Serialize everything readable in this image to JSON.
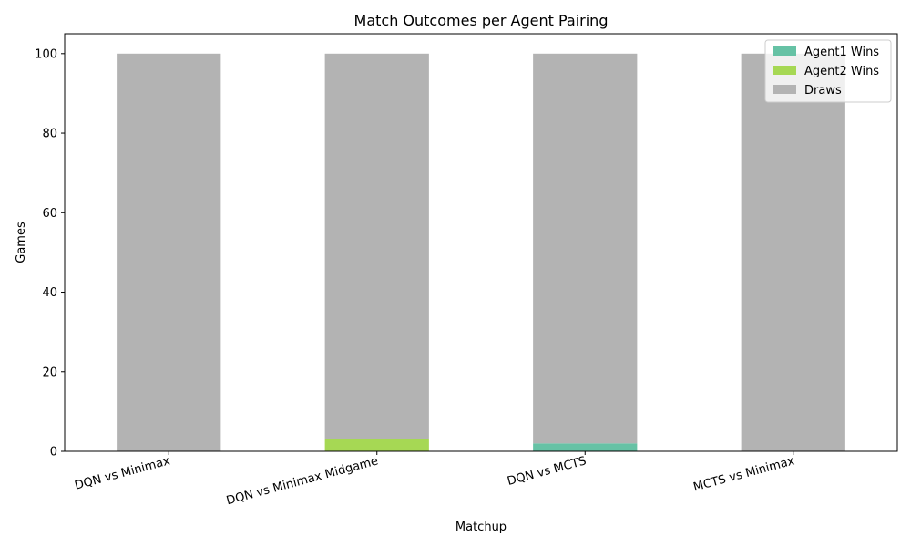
{
  "chart_data": {
    "type": "bar",
    "stacked": true,
    "title": "Match Outcomes per Agent Pairing",
    "xlabel": "Matchup",
    "ylabel": "Games",
    "categories": [
      "DQN vs Minimax",
      "DQN vs Minimax Midgame",
      "DQN vs MCTS",
      "MCTS vs Minimax"
    ],
    "series": [
      {
        "name": "Agent1 Wins",
        "values": [
          0,
          0,
          2,
          0
        ],
        "color": "#66c2a5"
      },
      {
        "name": "Agent2 Wins",
        "values": [
          0,
          3,
          0,
          0
        ],
        "color": "#a6d854"
      },
      {
        "name": "Draws",
        "values": [
          100,
          97,
          98,
          100
        ],
        "color": "#b3b3b3"
      }
    ],
    "ylim": [
      0,
      105
    ],
    "yticks": [
      0,
      20,
      40,
      60,
      80,
      100
    ],
    "grid": false,
    "legend_position": "top-right"
  }
}
